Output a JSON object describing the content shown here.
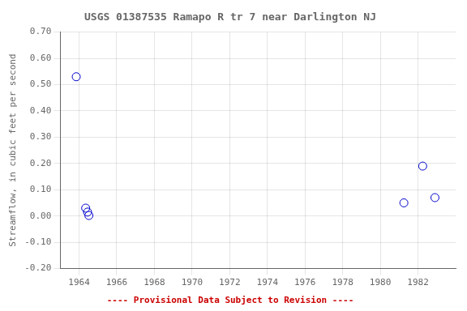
{
  "chart_data": {
    "type": "scatter",
    "title": "USGS 01387535 Ramapo R tr 7 near Darlington NJ",
    "y_label": "Streamflow, in cubic feet per second",
    "x": [
      1963.85,
      1964.35,
      1964.45,
      1964.52,
      1981.25,
      1982.25,
      1982.9
    ],
    "values": [
      0.53,
      0.03,
      0.015,
      0.002,
      0.05,
      0.19,
      0.07
    ],
    "color": "#0000cc",
    "marker": "circle",
    "xlim": [
      1963,
      1984
    ],
    "ylim": [
      -0.2,
      0.7
    ],
    "xticks": [
      1964,
      1966,
      1968,
      1970,
      1972,
      1974,
      1976,
      1978,
      1980,
      1982
    ],
    "yticks": [
      {
        "value": -0.2,
        "label": "-0.20"
      },
      {
        "value": -0.1,
        "label": "-0.10"
      },
      {
        "value": 0.0,
        "label": "0.00"
      },
      {
        "value": 0.1,
        "label": "0.10"
      },
      {
        "value": 0.2,
        "label": "0.20"
      },
      {
        "value": 0.3,
        "label": "0.30"
      },
      {
        "value": 0.4,
        "label": "0.40"
      },
      {
        "value": 0.5,
        "label": "0.50"
      },
      {
        "value": 0.6,
        "label": "0.60"
      },
      {
        "value": 0.7,
        "label": "0.70"
      }
    ],
    "grid": true,
    "annotations": [
      {
        "text": "---- Provisional Data Subject to Revision ----",
        "color": "#cc0000"
      }
    ]
  }
}
